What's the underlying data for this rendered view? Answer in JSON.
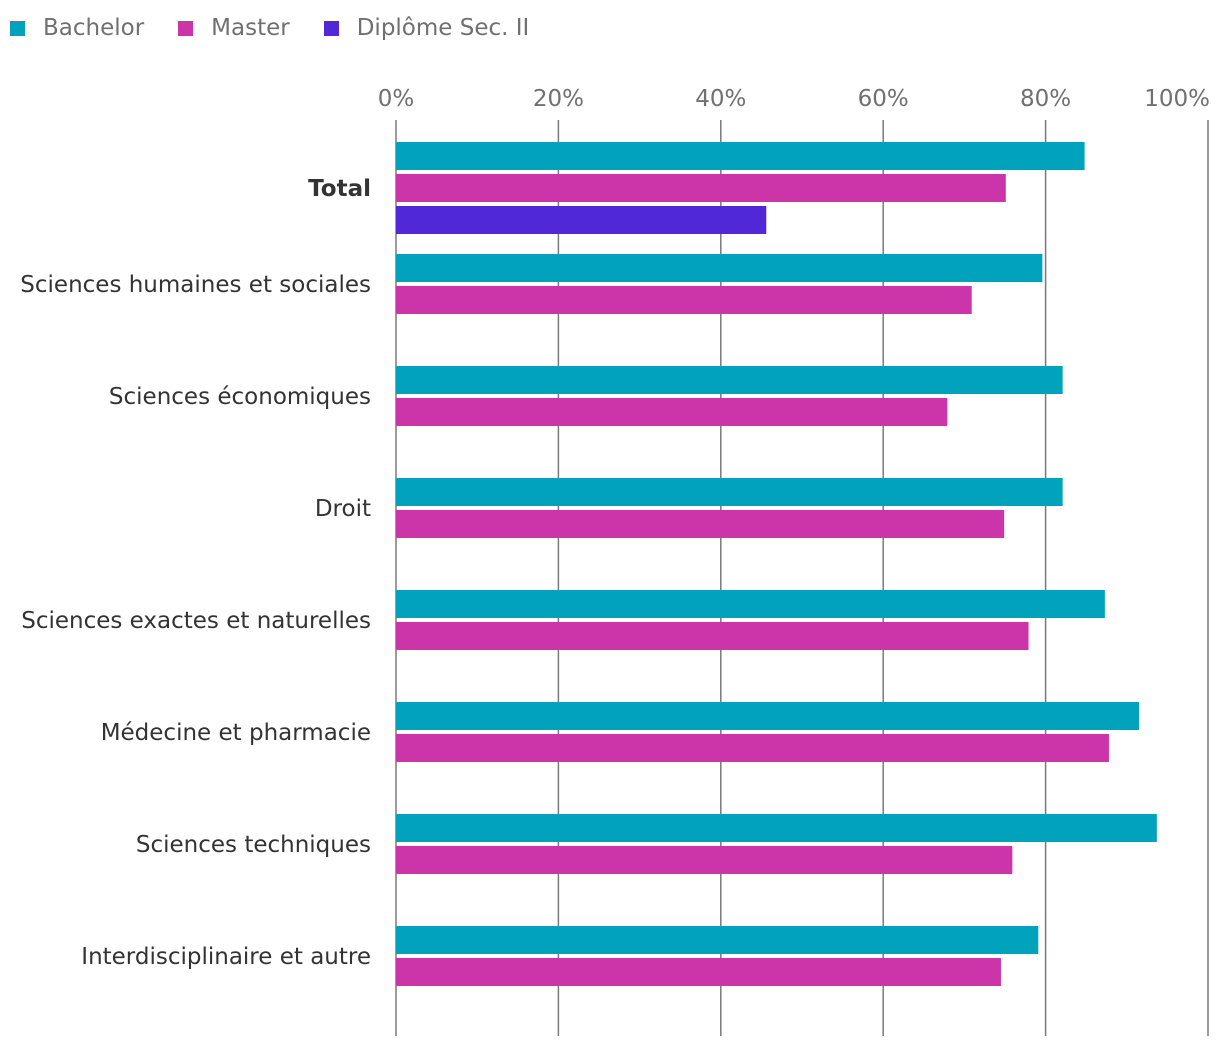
{
  "chart_data": {
    "type": "bar",
    "orientation": "horizontal",
    "categories": [
      "Total",
      "Sciences humaines et sociales",
      "Sciences économiques",
      "Droit",
      "Sciences exactes et naturelles",
      "Médecine et pharmacie",
      "Sciences techniques",
      "Interdisciplinaire et autre"
    ],
    "emphasized_category": "Total",
    "series": [
      {
        "name": "Bachelor",
        "color": "#00a3bb",
        "values": [
          84.8,
          79.6,
          82.1,
          82.1,
          87.3,
          91.5,
          93.7,
          79.1
        ]
      },
      {
        "name": "Master",
        "color": "#cc35aa",
        "values": [
          75.1,
          70.9,
          67.9,
          74.9,
          77.9,
          87.8,
          75.9,
          74.5
        ]
      },
      {
        "name": "Diplôme Sec. II",
        "color": "#5028d7",
        "values": [
          45.6,
          null,
          null,
          null,
          null,
          null,
          null,
          null
        ]
      }
    ],
    "xlim": [
      0,
      100
    ],
    "xticks": [
      "0%",
      "20%",
      "40%",
      "60%",
      "80%",
      "100%"
    ],
    "grid": true,
    "legend_position": "top-left"
  }
}
